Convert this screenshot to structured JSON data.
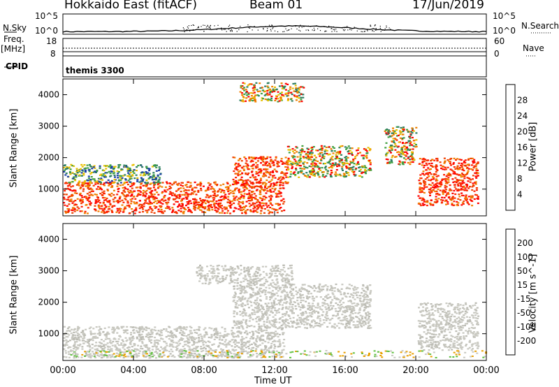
{
  "header": {
    "station": "Hokkaido East (fitACF)",
    "beam": "Beam 01",
    "date": "17/Jun/2019"
  },
  "left_labels": {
    "nsky": "N.Sky",
    "freq_top": "Freq.",
    "freq_unit": "[MHz]",
    "cpid": "CPID"
  },
  "right_labels": {
    "nsearch": "N.Search",
    "nave": "Nave"
  },
  "cpid_value": "themis 3300",
  "x_axis": {
    "label": "Time UT",
    "ticks": [
      "00:00",
      "04:00",
      "08:00",
      "12:00",
      "16:00",
      "20:00",
      "00:00"
    ]
  },
  "chart_data": [
    {
      "type": "line",
      "name": "noise",
      "left_ticks": [
        "10^5",
        "10^0"
      ],
      "right_ticks": [
        "10^5",
        "10^0"
      ]
    },
    {
      "type": "line",
      "name": "freq-nave",
      "left_ticks": [
        "18",
        "8"
      ],
      "right_ticks": [
        "60",
        "0"
      ]
    },
    {
      "type": "heatmap",
      "ylabel": "Slant Range [km]",
      "y_ticks": [
        1000,
        2000,
        3000,
        4000
      ],
      "ylim": [
        150,
        4500
      ],
      "xlim": [
        0,
        24
      ],
      "colorbar": {
        "label": "Power [dB]",
        "ticks": [
          "4",
          "8",
          "12",
          "16",
          "20",
          "24",
          "28"
        ],
        "colors": [
          "#0000ff",
          "#1c3fa8",
          "#2e7f60",
          "#40a040",
          "#e8c000",
          "#f08000",
          "#f04000",
          "#ff0000"
        ]
      },
      "echo_regions": [
        {
          "t": [
            0,
            12.5
          ],
          "r": [
            250,
            1250
          ],
          "level": "strong"
        },
        {
          "t": [
            9.6,
            12.7
          ],
          "r": [
            1200,
            2050
          ],
          "level": "strong"
        },
        {
          "t": [
            12.7,
            17.4
          ],
          "r": [
            1400,
            2400
          ],
          "level": "mixed"
        },
        {
          "t": [
            20.1,
            23.5
          ],
          "r": [
            500,
            2000
          ],
          "level": "strong"
        },
        {
          "t": [
            18.2,
            20.0
          ],
          "r": [
            1800,
            3000
          ],
          "level": "mixed"
        },
        {
          "t": [
            10.0,
            13.6
          ],
          "r": [
            3800,
            4400
          ],
          "level": "mixed"
        },
        {
          "t": [
            0,
            5.5
          ],
          "r": [
            1200,
            1800
          ],
          "level": "weak"
        }
      ]
    },
    {
      "type": "heatmap",
      "ylabel": "Slant Range [km]",
      "y_ticks": [
        1000,
        2000,
        3000,
        4000
      ],
      "ylim": [
        150,
        4500
      ],
      "xlim": [
        0,
        24
      ],
      "colorbar": {
        "label": "Velocity [m s^-1]",
        "ticks": [
          "200",
          "100",
          "50",
          "15",
          "-15",
          "-50",
          "-100",
          "-200"
        ],
        "colors": [
          "#0000ff",
          "#1c3fa8",
          "#2e7f60",
          "#60c040",
          "#c8c8c0",
          "#e8a000",
          "#f06000",
          "#ff2000",
          "#ff0000"
        ]
      },
      "echo_regions": [
        {
          "t": [
            0,
            12.5
          ],
          "r": [
            250,
            1250
          ],
          "level": "ground"
        },
        {
          "t": [
            9.6,
            17.4
          ],
          "r": [
            1200,
            2600
          ],
          "level": "ground"
        },
        {
          "t": [
            20.1,
            23.5
          ],
          "r": [
            500,
            2000
          ],
          "level": "ground"
        },
        {
          "t": [
            7.5,
            13
          ],
          "r": [
            2600,
            3200
          ],
          "level": "ground"
        }
      ]
    }
  ]
}
